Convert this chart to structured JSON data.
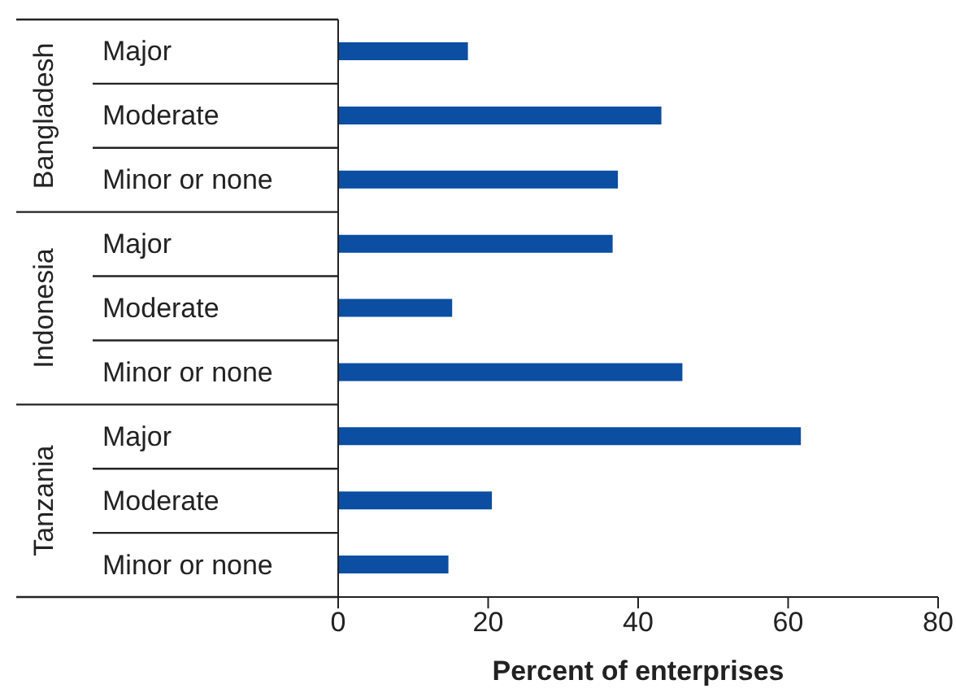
{
  "chart_data": {
    "type": "bar",
    "orientation": "horizontal",
    "xlabel": "Percent of enterprises",
    "categories": [
      "Major",
      "Moderate",
      "Minor or none",
      "Major",
      "Moderate",
      "Minor or none",
      "Major",
      "Moderate",
      "Minor or none"
    ],
    "annotations": [
      "Bangladesh",
      "Indonesia",
      "Tanzania"
    ],
    "values": [
      17.3,
      43.1,
      37.3,
      36.6,
      15.2,
      45.9,
      61.7,
      20.5,
      14.7
    ],
    "color": "#0b4ea2",
    "xlim": [
      0,
      80
    ],
    "xticks": [
      0,
      20,
      40,
      60,
      80
    ]
  }
}
